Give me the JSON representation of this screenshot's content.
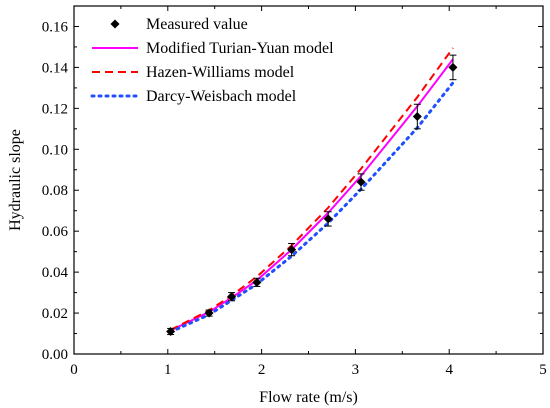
{
  "chart_data": {
    "type": "line",
    "xlabel": "Flow rate (m/s)",
    "ylabel": "Hydraulic slope",
    "xlim": [
      0,
      5
    ],
    "ylim": [
      0,
      0.17
    ],
    "x_ticks": [
      0,
      1,
      2,
      3,
      4,
      5
    ],
    "x_tick_labels": [
      "0",
      "1",
      "2",
      "3",
      "4",
      "5"
    ],
    "y_ticks": [
      0,
      0.02,
      0.04,
      0.06,
      0.08,
      0.1,
      0.12,
      0.14,
      0.16
    ],
    "y_tick_labels": [
      "0.00",
      "0.02",
      "0.04",
      "0.06",
      "0.08",
      "0.10",
      "0.12",
      "0.14",
      "0.16"
    ],
    "grid": false,
    "legend_position": "top-left",
    "series": [
      {
        "name": "Measured value",
        "style": "markers",
        "marker": "diamond",
        "color": "#000000",
        "x": [
          1.03,
          1.44,
          1.68,
          1.95,
          2.32,
          2.71,
          3.06,
          3.66,
          4.04
        ],
        "y": [
          0.011,
          0.02,
          0.028,
          0.035,
          0.051,
          0.066,
          0.084,
          0.116,
          0.14
        ],
        "error": [
          0.0015,
          0.0015,
          0.002,
          0.002,
          0.003,
          0.0035,
          0.004,
          0.006,
          0.006
        ]
      },
      {
        "name": "Modified Turian-Yuan model",
        "style": "solid",
        "color": "#ff00ff",
        "x": [
          1.03,
          1.44,
          1.68,
          1.95,
          2.32,
          2.71,
          3.06,
          3.66,
          4.04
        ],
        "y": [
          0.0115,
          0.0205,
          0.0275,
          0.036,
          0.051,
          0.069,
          0.087,
          0.121,
          0.144
        ]
      },
      {
        "name": "Hazen-Williams model",
        "style": "dashed",
        "color": "#ff0000",
        "x": [
          1.03,
          1.44,
          1.68,
          1.95,
          2.32,
          2.71,
          3.06,
          3.66,
          4.04
        ],
        "y": [
          0.0118,
          0.0213,
          0.0285,
          0.0378,
          0.053,
          0.0715,
          0.0905,
          0.1255,
          0.1495
        ]
      },
      {
        "name": "Darcy-Weisbach model",
        "style": "dotted",
        "color": "#1f4fff",
        "x": [
          1.03,
          1.44,
          1.68,
          1.95,
          2.32,
          2.71,
          3.06,
          3.66,
          4.04
        ],
        "y": [
          0.0108,
          0.0192,
          0.0262,
          0.0342,
          0.0478,
          0.064,
          0.0805,
          0.1105,
          0.1325
        ]
      }
    ]
  }
}
